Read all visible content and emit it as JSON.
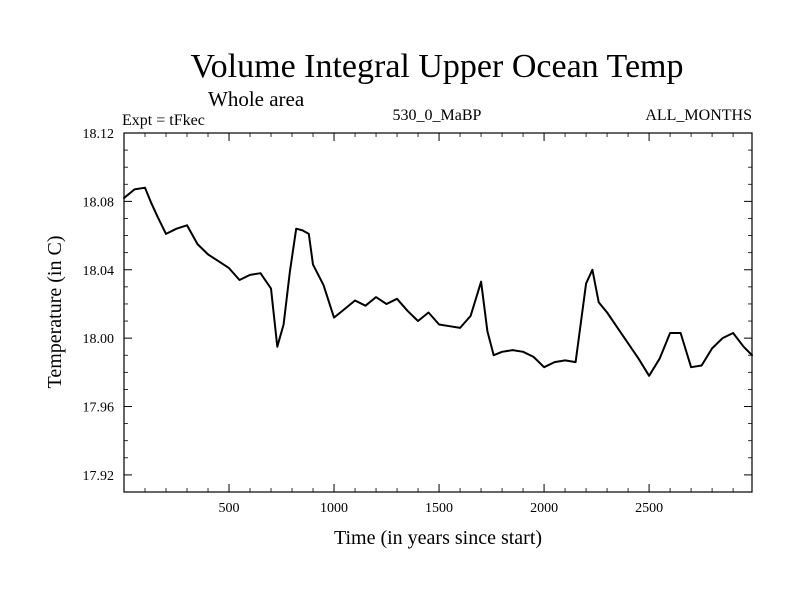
{
  "chart_data": {
    "type": "line",
    "title": "Volume Integral Upper Ocean Temp",
    "subtitle": "Whole area",
    "annotations": {
      "left": "Expt = tFkec",
      "center": "530_0_MaBP",
      "right": "ALL_MONTHS"
    },
    "xlabel": "Time (in years since start)",
    "ylabel": "Temperature (in C)",
    "xlim": [
      0,
      2990
    ],
    "ylim": [
      17.91,
      18.12
    ],
    "xticks": [
      500,
      1000,
      1500,
      2000,
      2500
    ],
    "yticks": [
      17.92,
      17.96,
      18.0,
      18.04,
      18.08,
      18.12
    ],
    "ytick_labels": [
      "17.92",
      "17.96",
      "18.00",
      "18.04",
      "18.08",
      "18.12"
    ],
    "grid": false,
    "series": [
      {
        "name": "",
        "color": "#000000",
        "x": [
          0,
          50,
          100,
          130,
          160,
          200,
          250,
          300,
          350,
          400,
          450,
          500,
          550,
          600,
          650,
          700,
          730,
          760,
          790,
          820,
          850,
          880,
          900,
          950,
          1000,
          1050,
          1100,
          1150,
          1200,
          1250,
          1300,
          1350,
          1400,
          1450,
          1500,
          1550,
          1600,
          1650,
          1700,
          1730,
          1760,
          1800,
          1850,
          1900,
          1950,
          2000,
          2050,
          2100,
          2150,
          2200,
          2230,
          2260,
          2300,
          2350,
          2400,
          2450,
          2500,
          2550,
          2600,
          2650,
          2700,
          2750,
          2800,
          2850,
          2900,
          2950,
          2990
        ],
        "y": [
          18.082,
          18.087,
          18.088,
          18.079,
          18.071,
          18.061,
          18.064,
          18.066,
          18.055,
          18.049,
          18.045,
          18.041,
          18.034,
          18.037,
          18.038,
          18.029,
          17.995,
          18.008,
          18.039,
          18.064,
          18.063,
          18.061,
          18.043,
          18.031,
          18.012,
          18.017,
          18.022,
          18.019,
          18.024,
          18.02,
          18.023,
          18.016,
          18.01,
          18.015,
          18.008,
          18.007,
          18.006,
          18.013,
          18.033,
          18.004,
          17.99,
          17.992,
          17.993,
          17.992,
          17.989,
          17.983,
          17.986,
          17.987,
          17.986,
          18.032,
          18.04,
          18.021,
          18.015,
          18.006,
          17.997,
          17.988,
          17.978,
          17.988,
          18.003,
          18.003,
          17.983,
          17.984,
          17.994,
          18.0,
          18.003,
          17.995,
          17.99
        ]
      }
    ]
  }
}
